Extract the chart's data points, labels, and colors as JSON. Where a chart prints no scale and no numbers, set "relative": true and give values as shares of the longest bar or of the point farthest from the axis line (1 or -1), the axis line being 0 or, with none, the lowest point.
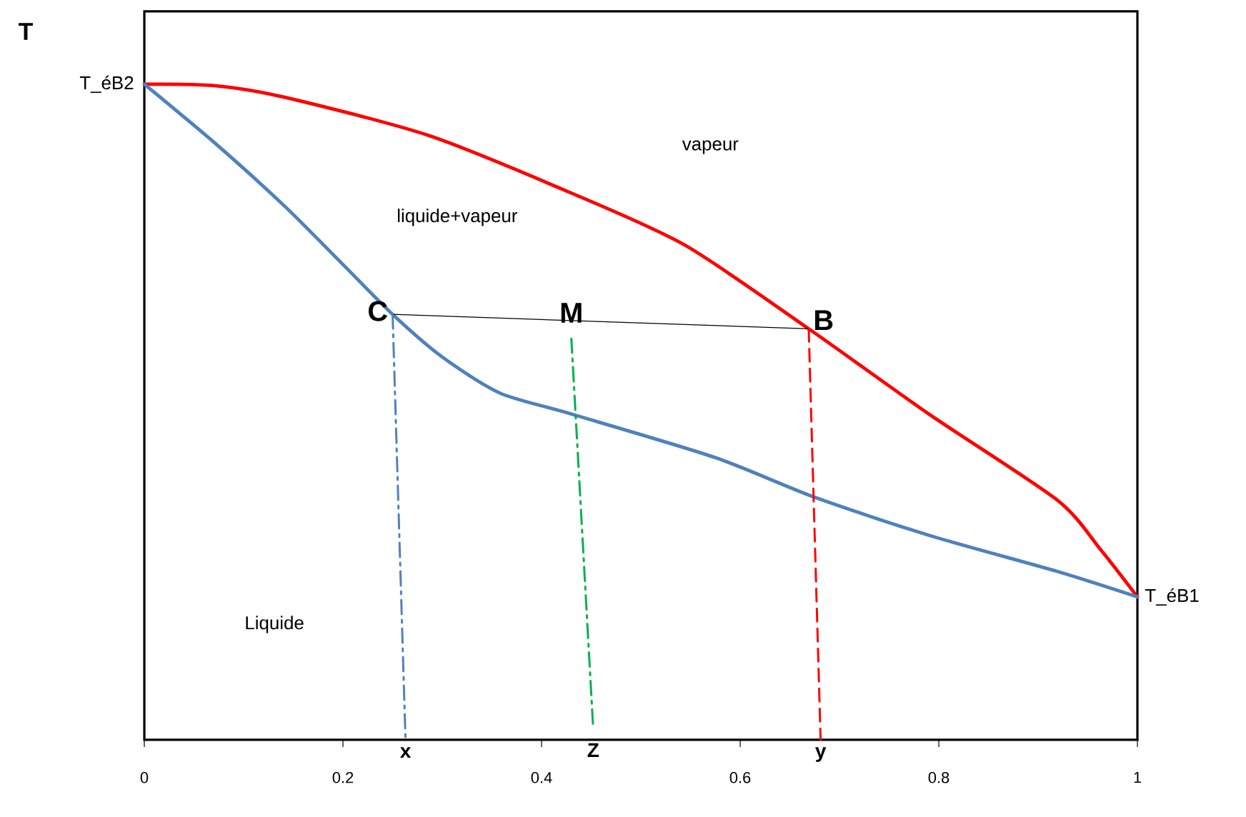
{
  "chart_data": {
    "type": "line",
    "relative": true,
    "ylabel": "T",
    "xlim": [
      0,
      1
    ],
    "xticks": [
      0,
      0.2,
      0.4,
      0.6,
      0.8,
      1
    ],
    "grid": false,
    "marker": "none",
    "series": [
      {
        "color": "#ff0000",
        "line_style": "solid",
        "x": [
          0,
          0.0705,
          0.142,
          0.286,
          0.43,
          0.545,
          0.669,
          0.79,
          0.919,
          0.963,
          1
        ],
        "values": [
          1.0,
          0.998,
          0.98,
          0.922,
          0.834,
          0.754,
          0.627,
          0.497,
          0.366,
          0.29,
          0.218
        ]
      },
      {
        "color": "#4f81bd",
        "line_style": "solid",
        "x": [
          0,
          0.0705,
          0.142,
          0.2,
          0.25,
          0.3,
          0.358,
          0.43,
          0.574,
          0.675,
          0.79,
          0.919,
          1
        ],
        "values": [
          1.0,
          0.911,
          0.813,
          0.725,
          0.649,
          0.584,
          0.529,
          0.497,
          0.431,
          0.37,
          0.312,
          0.257,
          0.218
        ]
      },
      {
        "color": "#000000",
        "line_style": "solid",
        "x": [
          0.25,
          0.669
        ],
        "values": [
          0.649,
          0.627
        ]
      },
      {
        "color": "#4f81bd",
        "line_style": "dashdot",
        "x": [
          0.25,
          0.263
        ],
        "values": [
          0.649,
          0.0
        ]
      },
      {
        "color": "#00b050",
        "line_style": "dashdot",
        "x": [
          0.43,
          0.452
        ],
        "values": [
          0.612,
          0.017
        ]
      },
      {
        "color": "#ff0000",
        "line_style": "dashed",
        "x": [
          0.669,
          0.681
        ],
        "values": [
          0.627,
          0.0
        ]
      }
    ],
    "annotations": [
      {
        "text": "T_éB2",
        "x": 0,
        "y": 1.0
      },
      {
        "text": "T_éB1",
        "x": 1,
        "y": 0.218
      },
      "vapeur",
      "liquide+vapeur",
      "Liquide",
      {
        "text": "C",
        "x": 0.25,
        "y": 0.649
      },
      {
        "text": "M",
        "x": 0.43,
        "y": 0.612
      },
      {
        "text": "B",
        "x": 0.669,
        "y": 0.627
      },
      {
        "text": "x",
        "x": 0.263,
        "y": 0
      },
      {
        "text": "Z",
        "x": 0.452,
        "y": 0.017
      },
      {
        "text": "y",
        "x": 0.681,
        "y": 0
      }
    ]
  }
}
